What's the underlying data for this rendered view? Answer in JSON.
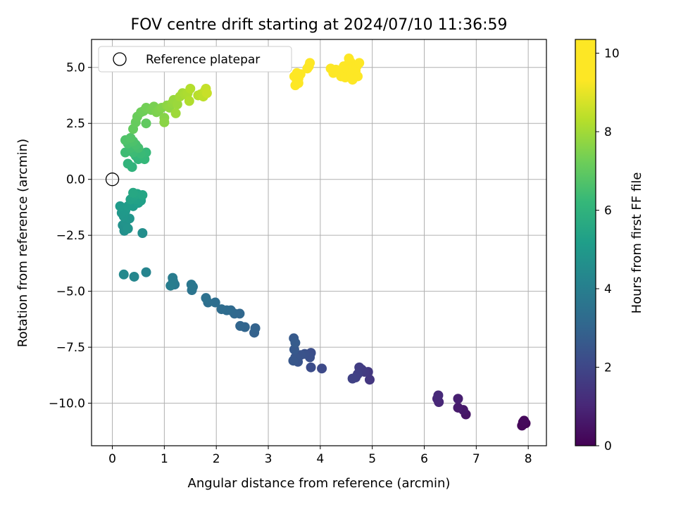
{
  "chart_data": {
    "type": "scatter",
    "title": "FOV centre drift starting at 2024/07/10 11:36:59",
    "xlabel": "Angular distance from reference (arcmin)",
    "ylabel": "Rotation from reference (arcmin)",
    "xlim": [
      -0.4,
      8.35
    ],
    "ylim": [
      -11.9,
      6.25
    ],
    "xticks": [
      0,
      1,
      2,
      3,
      4,
      5,
      6,
      7,
      8
    ],
    "xtick_labels": [
      "0",
      "1",
      "2",
      "3",
      "4",
      "5",
      "6",
      "7",
      "8"
    ],
    "yticks": [
      5.0,
      2.5,
      0.0,
      -2.5,
      -5.0,
      -7.5,
      -10.0
    ],
    "ytick_labels": [
      "5.0",
      "2.5",
      "0.0",
      "−2.5",
      "−5.0",
      "−7.5",
      "−10.0"
    ],
    "grid": true,
    "legend": {
      "position": "top-left",
      "entries": [
        "Reference platepar"
      ]
    },
    "reference_point": {
      "x": 0,
      "y": 0
    },
    "colorbar": {
      "label": "Hours from first FF file",
      "colormap": "viridis",
      "range": [
        0,
        10.35
      ],
      "ticks": [
        0,
        2,
        4,
        6,
        8,
        10
      ],
      "tick_labels": [
        "0",
        "2",
        "4",
        "6",
        "8",
        "10"
      ]
    },
    "points": [
      [
        7.9,
        -10.85,
        0.05
      ],
      [
        7.95,
        -10.9,
        0.1
      ],
      [
        7.88,
        -11.0,
        0.15
      ],
      [
        7.92,
        -10.78,
        0.2
      ],
      [
        6.8,
        -10.5,
        0.5
      ],
      [
        6.75,
        -10.3,
        0.6
      ],
      [
        6.65,
        -10.2,
        0.7
      ],
      [
        6.65,
        -9.8,
        0.8
      ],
      [
        6.28,
        -9.95,
        1.0
      ],
      [
        6.25,
        -9.8,
        1.05
      ],
      [
        6.27,
        -9.65,
        1.1
      ],
      [
        4.95,
        -8.95,
        1.5
      ],
      [
        4.92,
        -8.6,
        1.55
      ],
      [
        4.85,
        -8.6,
        1.6
      ],
      [
        4.8,
        -8.5,
        1.65
      ],
      [
        4.75,
        -8.4,
        1.7
      ],
      [
        4.72,
        -8.7,
        1.75
      ],
      [
        4.68,
        -8.85,
        1.8
      ],
      [
        4.62,
        -8.9,
        1.85
      ],
      [
        4.03,
        -8.45,
        2.1
      ],
      [
        3.82,
        -8.4,
        2.2
      ],
      [
        3.82,
        -7.75,
        2.25
      ],
      [
        3.8,
        -7.95,
        2.3
      ],
      [
        3.7,
        -7.8,
        2.35
      ],
      [
        3.62,
        -7.85,
        2.4
      ],
      [
        3.57,
        -8.15,
        2.45
      ],
      [
        3.52,
        -7.95,
        2.5
      ],
      [
        3.48,
        -8.1,
        2.55
      ],
      [
        3.5,
        -7.6,
        2.6
      ],
      [
        3.49,
        -7.1,
        2.65
      ],
      [
        3.52,
        -7.3,
        2.7
      ],
      [
        2.73,
        -6.85,
        2.9
      ],
      [
        2.75,
        -6.65,
        2.95
      ],
      [
        2.55,
        -6.6,
        3.0
      ],
      [
        2.46,
        -6.55,
        3.05
      ],
      [
        2.45,
        -6.0,
        3.1
      ],
      [
        2.35,
        -6.0,
        3.15
      ],
      [
        2.28,
        -5.85,
        3.2
      ],
      [
        2.2,
        -5.85,
        3.25
      ],
      [
        2.1,
        -5.8,
        3.3
      ],
      [
        1.98,
        -5.5,
        3.35
      ],
      [
        1.84,
        -5.5,
        3.4
      ],
      [
        1.8,
        -5.3,
        3.45
      ],
      [
        1.53,
        -4.95,
        3.6
      ],
      [
        1.55,
        -4.8,
        3.65
      ],
      [
        1.52,
        -4.7,
        3.7
      ],
      [
        1.2,
        -4.7,
        3.8
      ],
      [
        1.17,
        -4.55,
        3.85
      ],
      [
        1.16,
        -4.4,
        3.9
      ],
      [
        1.12,
        -4.75,
        3.95
      ],
      [
        0.65,
        -4.15,
        4.2
      ],
      [
        0.42,
        -4.35,
        4.3
      ],
      [
        0.22,
        -4.25,
        4.4
      ],
      [
        0.58,
        -2.4,
        4.6
      ],
      [
        0.23,
        -2.3,
        4.65
      ],
      [
        0.2,
        -2.05,
        4.7
      ],
      [
        0.25,
        -1.95,
        4.75
      ],
      [
        0.3,
        -2.2,
        4.8
      ],
      [
        0.33,
        -1.75,
        4.85
      ],
      [
        0.22,
        -1.65,
        4.9
      ],
      [
        0.18,
        -1.5,
        4.95
      ],
      [
        0.25,
        -1.4,
        5.0
      ],
      [
        0.15,
        -1.2,
        5.05
      ],
      [
        0.3,
        -1.2,
        5.1
      ],
      [
        0.4,
        -1.2,
        5.15
      ],
      [
        0.5,
        -1.05,
        5.2
      ],
      [
        0.55,
        -0.95,
        5.25
      ],
      [
        0.45,
        -0.9,
        5.3
      ],
      [
        0.35,
        -0.9,
        5.35
      ],
      [
        0.42,
        -0.75,
        5.4
      ],
      [
        0.48,
        -0.65,
        5.45
      ],
      [
        0.58,
        -0.7,
        5.5
      ],
      [
        0.4,
        -0.6,
        5.55
      ],
      [
        0.38,
        0.55,
        6.0
      ],
      [
        0.3,
        0.7,
        6.05
      ],
      [
        0.5,
        0.9,
        6.1
      ],
      [
        0.45,
        1.05,
        6.15
      ],
      [
        0.62,
        0.9,
        6.2
      ],
      [
        0.65,
        1.2,
        6.25
      ],
      [
        0.55,
        1.15,
        6.3
      ],
      [
        0.4,
        1.2,
        6.35
      ],
      [
        0.25,
        1.2,
        6.4
      ],
      [
        0.35,
        1.4,
        6.45
      ],
      [
        0.5,
        1.4,
        6.5
      ],
      [
        0.45,
        1.55,
        6.55
      ],
      [
        0.3,
        1.6,
        6.6
      ],
      [
        0.4,
        1.7,
        6.65
      ],
      [
        0.25,
        1.75,
        6.7
      ],
      [
        0.35,
        1.85,
        6.75
      ],
      [
        0.65,
        2.5,
        7.0
      ],
      [
        0.4,
        2.25,
        7.05
      ],
      [
        0.45,
        2.55,
        7.1
      ],
      [
        0.48,
        2.8,
        7.15
      ],
      [
        0.55,
        3.0,
        7.2
      ],
      [
        0.6,
        3.05,
        7.25
      ],
      [
        0.65,
        3.2,
        7.3
      ],
      [
        0.75,
        3.1,
        7.35
      ],
      [
        0.8,
        3.25,
        7.4
      ],
      [
        0.85,
        3.0,
        7.45
      ],
      [
        0.9,
        3.1,
        7.5
      ],
      [
        0.95,
        3.2,
        7.55
      ],
      [
        1.0,
        2.75,
        7.6
      ],
      [
        1.0,
        2.55,
        7.65
      ],
      [
        1.05,
        3.3,
        7.7
      ],
      [
        1.1,
        3.2,
        7.75
      ],
      [
        1.15,
        3.4,
        7.8
      ],
      [
        1.18,
        3.55,
        7.85
      ],
      [
        1.25,
        3.35,
        7.9
      ],
      [
        1.22,
        2.95,
        7.95
      ],
      [
        1.3,
        3.7,
        8.0
      ],
      [
        1.35,
        3.85,
        8.05
      ],
      [
        1.4,
        3.8,
        8.1
      ],
      [
        1.45,
        3.85,
        8.15
      ],
      [
        1.48,
        3.5,
        8.2
      ],
      [
        1.5,
        4.05,
        8.25
      ],
      [
        1.65,
        3.75,
        8.3
      ],
      [
        1.7,
        3.8,
        8.35
      ],
      [
        1.75,
        3.7,
        8.4
      ],
      [
        1.78,
        3.95,
        8.45
      ],
      [
        1.8,
        4.05,
        8.5
      ],
      [
        1.82,
        3.85,
        8.55
      ],
      [
        3.52,
        4.2,
        9.4
      ],
      [
        3.55,
        4.4,
        9.45
      ],
      [
        3.5,
        4.6,
        9.5
      ],
      [
        3.58,
        4.5,
        9.55
      ],
      [
        3.62,
        4.7,
        9.6
      ],
      [
        3.55,
        4.75,
        9.65
      ],
      [
        3.58,
        4.3,
        9.7
      ],
      [
        3.75,
        4.95,
        9.75
      ],
      [
        3.8,
        5.2,
        9.8
      ],
      [
        3.78,
        5.05,
        9.85
      ],
      [
        4.2,
        4.95,
        10.0
      ],
      [
        4.25,
        4.75,
        10.05
      ],
      [
        4.3,
        4.9,
        10.1
      ],
      [
        4.4,
        4.6,
        10.15
      ],
      [
        4.45,
        4.85,
        10.2
      ],
      [
        4.48,
        4.55,
        10.25
      ],
      [
        4.5,
        4.95,
        10.28
      ],
      [
        4.52,
        5.1,
        10.3
      ],
      [
        4.55,
        5.4,
        10.32
      ],
      [
        4.58,
        5.25,
        10.33
      ],
      [
        4.6,
        4.7,
        10.34
      ],
      [
        4.62,
        5.0,
        10.2
      ],
      [
        4.65,
        4.55,
        10.15
      ],
      [
        4.68,
        4.85,
        10.25
      ],
      [
        4.7,
        5.05,
        10.3
      ],
      [
        4.72,
        4.6,
        10.32
      ],
      [
        4.75,
        5.2,
        10.34
      ],
      [
        4.62,
        4.45,
        10.1
      ],
      [
        4.45,
        5.05,
        10.22
      ]
    ]
  }
}
